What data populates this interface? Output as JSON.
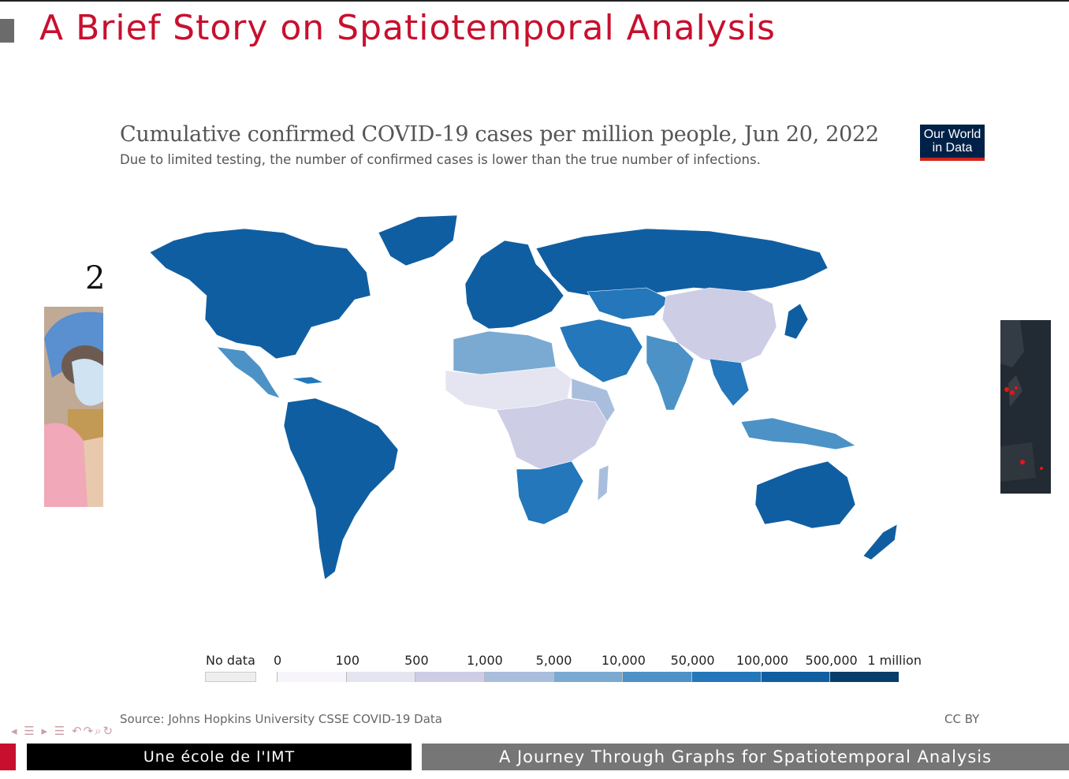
{
  "slide": {
    "title": "A Brief Story on Spatiotemporal Analysis",
    "number": "2"
  },
  "chart": {
    "title": "Cumulative confirmed COVID-19 cases per million people, Jun 20, 2022",
    "subtitle": "Due to limited testing, the number of confirmed cases is lower than the true number of infections.",
    "logo_line1": "Our World",
    "logo_line2": "in Data",
    "source": "Source: Johns Hopkins University CSSE COVID-19 Data",
    "license": "CC BY"
  },
  "chart_data": {
    "type": "choropleth",
    "title": "Cumulative confirmed COVID-19 cases per million people, Jun 20, 2022",
    "subtitle": "Due to limited testing, the number of confirmed cases is lower than the true number of infections.",
    "legend": {
      "no_data_label": "No data",
      "no_data_color": "#eeeeee",
      "ticks": [
        "0",
        "100",
        "500",
        "1,000",
        "5,000",
        "10,000",
        "50,000",
        "100,000",
        "500,000",
        "1 million"
      ],
      "colors": [
        "#f7f4fb",
        "#e5e5f2",
        "#cdcde6",
        "#a9bedd",
        "#7aaad2",
        "#4c92c6",
        "#2377ba",
        "#105ea2",
        "#083d6b"
      ]
    },
    "regions": [
      {
        "name": "North America",
        "color": "#105ea2"
      },
      {
        "name": "Greenland",
        "color": "#105ea2"
      },
      {
        "name": "Mexico",
        "color": "#4c92c6"
      },
      {
        "name": "South America",
        "color": "#105ea2"
      },
      {
        "name": "Europe",
        "color": "#105ea2"
      },
      {
        "name": "Russia",
        "color": "#105ea2"
      },
      {
        "name": "Central Asia",
        "color": "#2377ba"
      },
      {
        "name": "China",
        "color": "#cdcde6"
      },
      {
        "name": "India",
        "color": "#4c92c6"
      },
      {
        "name": "Middle East",
        "color": "#2377ba"
      },
      {
        "name": "North Africa",
        "color": "#7aaad2"
      },
      {
        "name": "Sahel",
        "color": "#e5e5f2"
      },
      {
        "name": "Central Africa",
        "color": "#cdcde6"
      },
      {
        "name": "East Africa",
        "color": "#a9bedd"
      },
      {
        "name": "Southern Africa",
        "color": "#2377ba"
      },
      {
        "name": "Madagascar",
        "color": "#a9bedd"
      },
      {
        "name": "Southeast Asia",
        "color": "#2377ba"
      },
      {
        "name": "Indonesia",
        "color": "#4c92c6"
      },
      {
        "name": "Australia",
        "color": "#105ea2"
      },
      {
        "name": "New Zealand",
        "color": "#105ea2"
      },
      {
        "name": "Japan",
        "color": "#105ea2"
      }
    ]
  },
  "nav": {
    "symbols": "◂ ☰ ▸ ☰ ↶↷⌕↻"
  },
  "footer": {
    "left": "Une école de l'IMT",
    "right": "A Journey Through Graphs for Spatiotemporal Analysis"
  }
}
